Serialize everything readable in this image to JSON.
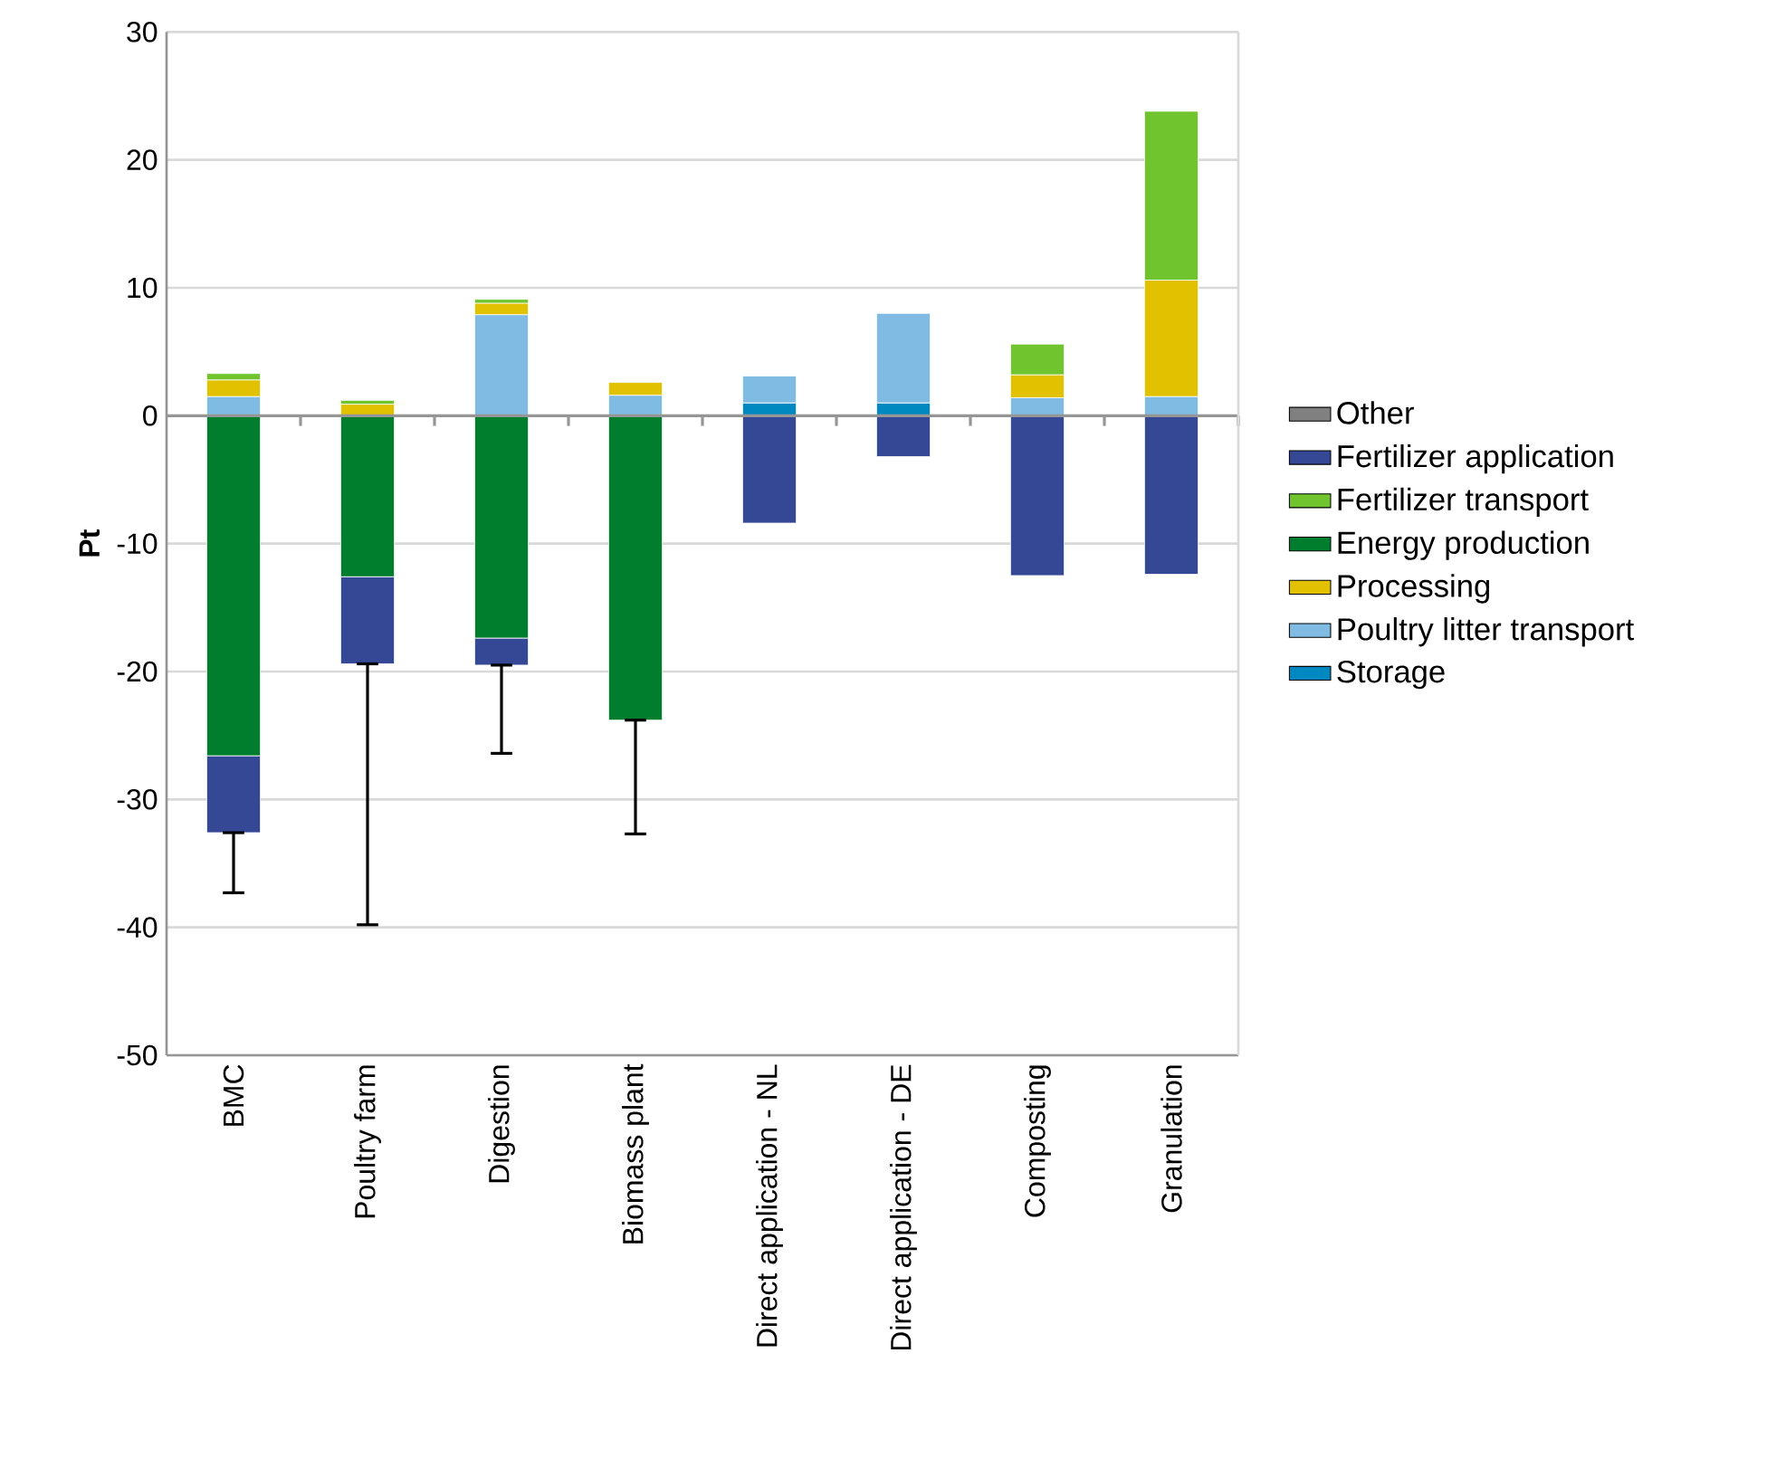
{
  "chart_data": {
    "type": "bar",
    "stacked": true,
    "ylabel": "Pt",
    "categories": [
      "BMC",
      "Poultry farm",
      "Digestion",
      "Biomass plant",
      "Direct application - NL",
      "Direct application - DE",
      "Composting",
      "Granulation"
    ],
    "series": [
      {
        "name": "Storage",
        "color": "#0089c0",
        "values": [
          0,
          0,
          0,
          0,
          1.0,
          1.0,
          0,
          0
        ]
      },
      {
        "name": "Poultry litter transport",
        "color": "#7fbbe2",
        "values": [
          1.5,
          0,
          7.9,
          1.6,
          2.1,
          7.0,
          1.4,
          1.5
        ]
      },
      {
        "name": "Processing",
        "color": "#e1c100",
        "values": [
          1.3,
          0.9,
          0.9,
          1.0,
          0,
          0,
          1.8,
          9.1
        ]
      },
      {
        "name": "Energy production",
        "color": "#007e2e",
        "values": [
          -26.6,
          -12.6,
          -17.4,
          -23.8,
          0,
          0,
          0,
          0
        ]
      },
      {
        "name": "Fertilizer transport",
        "color": "#70c52f",
        "values": [
          0.5,
          0.3,
          0.3,
          0,
          0,
          0,
          2.4,
          13.2
        ]
      },
      {
        "name": "Fertilizer application",
        "color": "#354896",
        "values": [
          -6.0,
          -6.8,
          -2.1,
          0,
          -8.4,
          -3.2,
          -12.5,
          -12.4
        ],
        "errors": [
          [
            -37.3,
            -32.6
          ],
          [
            -39.8,
            -19.4
          ],
          [
            -26.4,
            -19.5
          ],
          [
            -32.7,
            -23.8
          ],
          null,
          null,
          null,
          null
        ]
      },
      {
        "name": "Other",
        "color": "#808080",
        "values": [
          0,
          0,
          0,
          0,
          0,
          0,
          0,
          0
        ]
      }
    ],
    "ylim": [
      -50,
      30
    ],
    "yticks": [
      -50,
      -40,
      -30,
      -20,
      -10,
      0,
      10,
      20,
      30
    ],
    "grid": "y",
    "legend": "right"
  }
}
